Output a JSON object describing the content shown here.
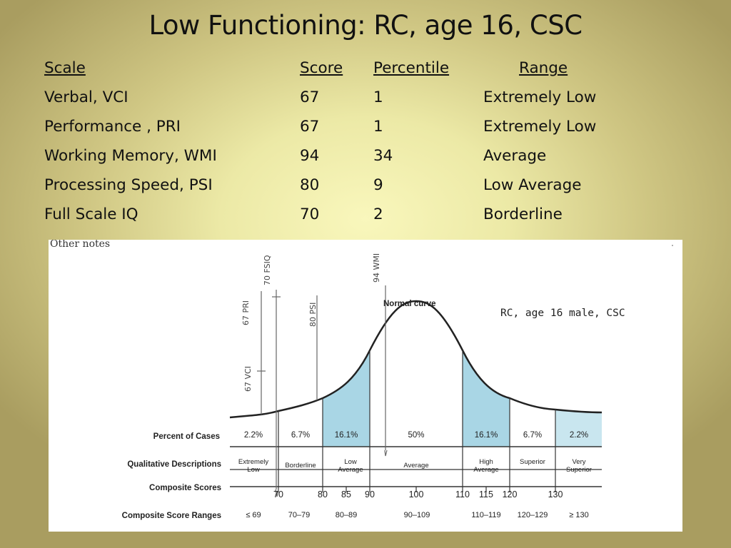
{
  "title": "Low Functioning:  RC, age 16, CSC",
  "table": {
    "headers": {
      "scale": "Scale",
      "score": "Score",
      "percentile": "Percentile",
      "range": "Range"
    },
    "rows": [
      {
        "scale": "Verbal, VCI",
        "score": "67",
        "percentile": "1",
        "range": "Extremely Low"
      },
      {
        "scale": "Performance , PRI",
        "score": "67",
        "percentile": "1",
        "range": "Extremely Low"
      },
      {
        "scale": "Working Memory, WMI",
        "score": "94",
        "percentile": "34",
        "range": "Average"
      },
      {
        "scale": "Processing Speed, PSI",
        "score": "80",
        "percentile": "9",
        "range": "Low Average"
      },
      {
        "scale": "Full Scale IQ",
        "score": "70",
        "percentile": "2",
        "range": "Borderline"
      }
    ]
  },
  "chart": {
    "other_notes": "Other notes",
    "patient_note": "RC, age 16 male, CSC",
    "curve_label": "Normal curve",
    "row_labels": {
      "percent": "Percent of Cases",
      "qualitative": "Qualitative Descriptions",
      "composite": "Composite Scores",
      "ranges": "Composite Score Ranges"
    },
    "percents": [
      "2.2%",
      "6.7%",
      "16.1%",
      "50%",
      "16.1%",
      "6.7%",
      "2.2%"
    ],
    "descriptions": [
      "Extremely Low",
      "Borderline",
      "Low Average",
      "Average",
      "High Average",
      "Superior",
      "Very Superior"
    ],
    "scores": [
      "70",
      "80",
      "85",
      "90",
      "100",
      "110",
      "115",
      "120",
      "130"
    ],
    "ranges": [
      "≤ 69",
      "70–79",
      "80–89",
      "90–109",
      "110–119",
      "120–129",
      "≥ 130"
    ],
    "handwritten": {
      "vci": "67 VCI",
      "pri": "67 PRI",
      "fsiq": "70 FSIQ",
      "psi": "80 PSI",
      "wmi": "94 WMI"
    },
    "shade_color": "#a9d6e5"
  }
}
